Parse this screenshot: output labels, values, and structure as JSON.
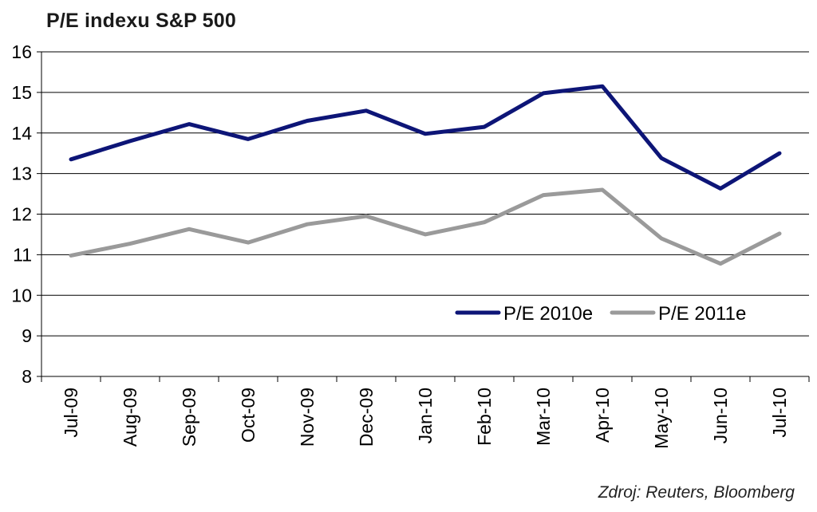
{
  "chart_data": {
    "type": "line",
    "title": "P/E indexu S&P 500",
    "categories": [
      "Jul-09",
      "Aug-09",
      "Sep-09",
      "Oct-09",
      "Nov-09",
      "Dec-09",
      "Jan-10",
      "Feb-10",
      "Mar-10",
      "Apr-10",
      "May-10",
      "Jun-10",
      "Jul-10"
    ],
    "series": [
      {
        "name": "P/E 2010e",
        "color": "#0d1577",
        "values": [
          13.35,
          13.8,
          14.22,
          13.85,
          14.3,
          14.55,
          13.98,
          14.15,
          14.98,
          15.15,
          13.38,
          12.63,
          13.5
        ]
      },
      {
        "name": "P/E 2011e",
        "color": "#9a9a9a",
        "values": [
          10.98,
          11.27,
          11.63,
          11.3,
          11.75,
          11.95,
          11.5,
          11.8,
          12.47,
          12.6,
          11.4,
          10.78,
          11.52
        ]
      }
    ],
    "ylim": [
      8,
      16
    ],
    "yticks": [
      8,
      9,
      10,
      11,
      12,
      13,
      14,
      15,
      16
    ],
    "grid": true,
    "legend": "bottom-right"
  },
  "source": "Zdroj: Reuters, Bloomberg"
}
